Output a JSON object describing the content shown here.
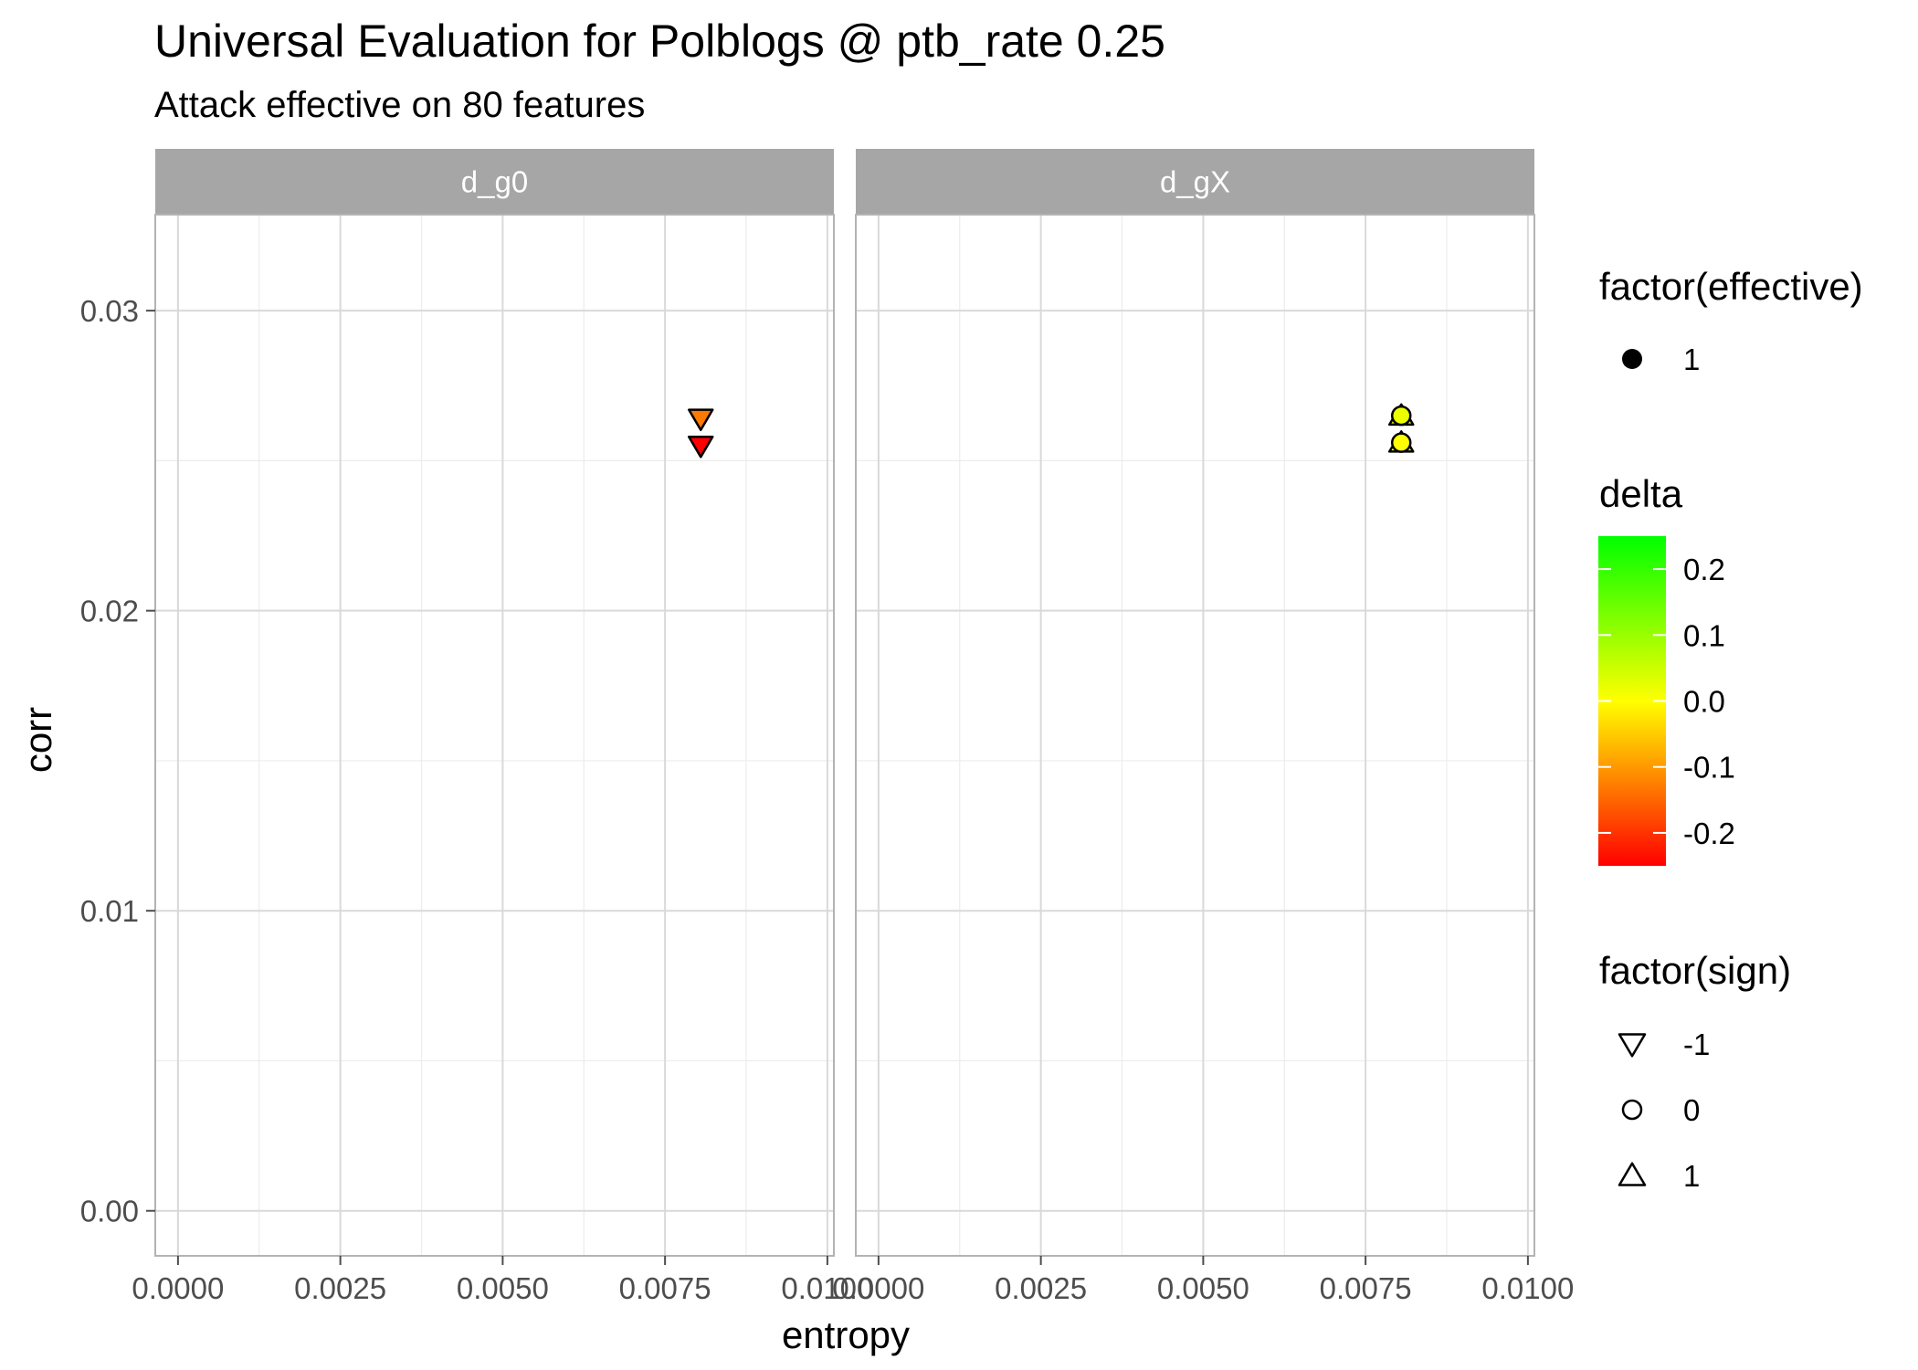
{
  "title": "Universal Evaluation for Polblogs @ ptb_rate 0.25",
  "subtitle": "Attack effective on 80 features",
  "chart_data": {
    "type": "scatter",
    "xlabel": "entropy",
    "ylabel": "corr",
    "xlim": [
      -0.00035,
      0.0101
    ],
    "ylim": [
      -0.0015,
      0.0332
    ],
    "x_ticks": [
      0,
      0.0025,
      0.005,
      0.0075,
      0.01
    ],
    "x_tick_labels": [
      "0.0000",
      "0.0025",
      "0.0050",
      "0.0075",
      "0.0100"
    ],
    "y_ticks": [
      0,
      0.01,
      0.02,
      0.03
    ],
    "y_tick_labels": [
      "0.00",
      "0.01",
      "0.02",
      "0.03"
    ],
    "grid": true,
    "panels": [
      {
        "label": "d_g0",
        "points": [
          {
            "x": 0.00805,
            "y": 0.0264,
            "delta": -0.13,
            "sign": -1,
            "effective": 1
          },
          {
            "x": 0.00805,
            "y": 0.0255,
            "delta": -0.25,
            "sign": -1,
            "effective": 1
          }
        ]
      },
      {
        "label": "d_gX",
        "points": [
          {
            "x": 0.00805,
            "y": 0.0265,
            "delta": 0.02,
            "sign": 1,
            "effective": 1
          },
          {
            "x": 0.00805,
            "y": 0.0265,
            "delta": 0.02,
            "sign": 0,
            "effective": 1
          },
          {
            "x": 0.00805,
            "y": 0.0256,
            "delta": 0.0,
            "sign": 1,
            "effective": 1
          },
          {
            "x": 0.00805,
            "y": 0.0256,
            "delta": 0.0,
            "sign": 0,
            "effective": 1
          }
        ]
      }
    ],
    "legends": {
      "effective": {
        "title": "factor(effective)",
        "items": [
          "1"
        ]
      },
      "delta": {
        "title": "delta",
        "range": [
          -0.25,
          0.25
        ],
        "ticks": [
          0.2,
          0.1,
          0.0,
          -0.1,
          -0.2
        ],
        "tick_labels": [
          "0.2",
          "0.1",
          "0.0",
          "-0.1",
          "-0.2"
        ],
        "low_color": "#ff0000",
        "mid_color": "#ffff00",
        "high_color": "#00ff00"
      },
      "sign": {
        "title": "factor(sign)",
        "items": [
          "-1",
          "0",
          "1"
        ],
        "shapes": [
          "triangle-down",
          "circle",
          "triangle-up"
        ]
      }
    }
  },
  "colors": {
    "strip_bg": "#a6a6a6",
    "grid_major": "#d9d9d9",
    "grid_minor": "#ececec",
    "panel_border": "#b3b3b3"
  }
}
